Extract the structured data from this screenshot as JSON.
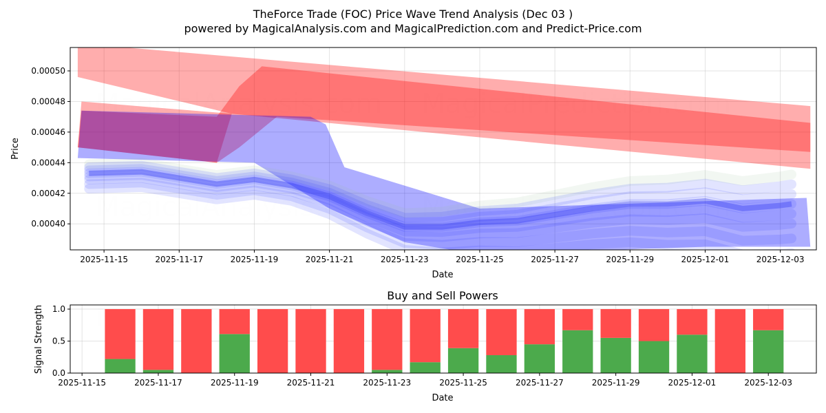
{
  "chart_data": [
    {
      "type": "area",
      "title": "TheForce Trade (FOC) Price Wave Trend Analysis (Dec 03 )",
      "subtitle": "powered by MagicalAnalysis.com and MagicalPrediction.com and Predict-Price.com",
      "xlabel": "Date",
      "ylabel": "Price",
      "x_origin": "2025-11-15",
      "xlim_days": [
        -0.9,
        18.96
      ],
      "ylim": [
        0.000383,
        0.0005153
      ],
      "xticks": [
        "2025-11-15",
        "2025-11-17",
        "2025-11-19",
        "2025-11-21",
        "2025-11-23",
        "2025-11-25",
        "2025-11-27",
        "2025-11-29",
        "2025-12-01",
        "2025-12-03"
      ],
      "yticks": [
        "0.00040",
        "0.00042",
        "0.00044",
        "0.00046",
        "0.00048",
        "0.00050"
      ],
      "ytick_values": [
        0.0004,
        0.00042,
        0.00044,
        0.00046,
        0.00048,
        0.0005
      ],
      "grid": true,
      "watermarks": [
        "MagicalAnalysis.com",
        "MagicalPrediction.com"
      ],
      "bands": [
        {
          "name": "red-band-upper",
          "color": "#ff0000",
          "alpha": 0.32,
          "points": [
            [
              -0.7,
              0.000518
            ],
            [
              18.8,
              0.000477
            ],
            [
              18.8,
              0.000436
            ],
            [
              3.4,
              0.000472
            ],
            [
              -0.7,
              0.000496
            ]
          ]
        },
        {
          "name": "red-band-lower",
          "color": "#ff0000",
          "alpha": 0.32,
          "points": [
            [
              -0.6,
              0.00048
            ],
            [
              3.4,
              0.000472
            ],
            [
              3.0,
              0.00044
            ],
            [
              -0.7,
              0.00045
            ]
          ]
        },
        {
          "name": "red-band-core",
          "color": "#ff0000",
          "alpha": 0.32,
          "points": [
            [
              -0.6,
              0.000474
            ],
            [
              3.0,
              0.00047
            ],
            [
              3.6,
              0.00049
            ],
            [
              4.2,
              0.000503
            ],
            [
              18.8,
              0.000466
            ],
            [
              18.8,
              0.000447
            ],
            [
              4.6,
              0.00047
            ],
            [
              3.6,
              0.00045
            ],
            [
              3.0,
              0.00044
            ],
            [
              -0.7,
              0.00045
            ]
          ]
        },
        {
          "name": "blue-band",
          "color": "#0000ff",
          "alpha": 0.32,
          "points": [
            [
              -0.6,
              0.000474
            ],
            [
              5.5,
              0.00047
            ],
            [
              5.9,
              0.000465
            ],
            [
              6.4,
              0.000437
            ],
            [
              10,
              0.00041
            ],
            [
              18.7,
              0.000417
            ],
            [
              18.8,
              0.000385
            ],
            [
              16,
              0.000385
            ],
            [
              10,
              0.00038
            ],
            [
              8,
              0.000388
            ],
            [
              6,
              0.00041
            ],
            [
              4,
              0.00044
            ],
            [
              -0.7,
              0.000443
            ]
          ]
        }
      ],
      "wave_center": {
        "x": [
          -0.4,
          1,
          2,
          3,
          4,
          5,
          6,
          7,
          8,
          9,
          10,
          11,
          12,
          13,
          14,
          15,
          16,
          17,
          18,
          18.3
        ],
        "y": [
          0.000433,
          0.000434,
          0.00043,
          0.000426,
          0.000429,
          0.000425,
          0.000418,
          0.000407,
          0.000398,
          0.000398,
          0.000401,
          0.000402,
          0.000406,
          0.00041,
          0.000413,
          0.000413,
          0.000415,
          0.00041,
          0.000412,
          0.000413
        ]
      },
      "wave_offsets": [
        6e-06,
        4e-06,
        2e-06,
        0,
        -2e-06,
        -4e-06,
        -7e-06,
        -1e-05
      ]
    },
    {
      "type": "bar",
      "title": "Buy and Sell Powers",
      "xlabel": "Date",
      "ylabel": "Signal Strength",
      "x_origin": "2025-11-15",
      "xlim_days": [
        -0.31,
        19.26
      ],
      "ylim": [
        0,
        1.065
      ],
      "xticks": [
        "2025-11-15",
        "2025-11-17",
        "2025-11-19",
        "2025-11-21",
        "2025-11-23",
        "2025-11-25",
        "2025-11-27",
        "2025-11-29",
        "2025-12-01",
        "2025-12-03"
      ],
      "yticks": [
        "0.0",
        "0.5",
        "1.0"
      ],
      "ytick_values": [
        0,
        0.5,
        1
      ],
      "categories": [
        "2025-11-16",
        "2025-11-17",
        "2025-11-18",
        "2025-11-19",
        "2025-11-20",
        "2025-11-21",
        "2025-11-22",
        "2025-11-23",
        "2025-11-24",
        "2025-11-25",
        "2025-11-26",
        "2025-11-27",
        "2025-11-28",
        "2025-11-29",
        "2025-11-30",
        "2025-12-01",
        "2025-12-02",
        "2025-12-03"
      ],
      "series": [
        {
          "name": "Buy",
          "color": "#4caa4c",
          "values": [
            0.22,
            0.05,
            0,
            0.61,
            0,
            0,
            0,
            0.05,
            0.17,
            0.39,
            0.28,
            0.45,
            0.67,
            0.55,
            0.5,
            0.6,
            0,
            0.67
          ]
        },
        {
          "name": "Sell",
          "color": "#ff4c4c",
          "values": [
            0.78,
            0.95,
            1,
            0.39,
            1,
            1,
            1,
            0.95,
            0.83,
            0.61,
            0.72,
            0.55,
            0.33,
            0.45,
            0.5,
            0.4,
            1,
            0.33
          ]
        }
      ],
      "watermarks": [
        "MagicalAnalysis.com",
        "MagicalPrediction.com"
      ]
    }
  ]
}
